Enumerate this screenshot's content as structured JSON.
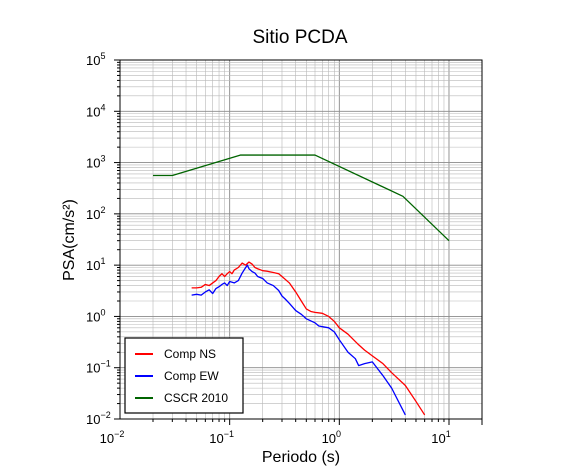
{
  "chart_data": {
    "type": "line",
    "title": "Sitio PCDA",
    "xlabel": "Periodo (s)",
    "ylabel": "PSA(cm/s²)",
    "xscale": "log",
    "yscale": "log",
    "xlim": [
      0.01,
      20
    ],
    "ylim": [
      0.01,
      100000
    ],
    "grid": true,
    "legend_position": "bottom-left",
    "x_ticks": [
      {
        "base": "10",
        "exp": "−2"
      },
      {
        "base": "10",
        "exp": "−1"
      },
      {
        "base": "10",
        "exp": "0"
      },
      {
        "base": "10",
        "exp": "1"
      }
    ],
    "y_ticks": [
      {
        "base": "10",
        "exp": "−2"
      },
      {
        "base": "10",
        "exp": "−1"
      },
      {
        "base": "10",
        "exp": "0"
      },
      {
        "base": "10",
        "exp": "1"
      },
      {
        "base": "10",
        "exp": "2"
      },
      {
        "base": "10",
        "exp": "3"
      },
      {
        "base": "10",
        "exp": "4"
      },
      {
        "base": "10",
        "exp": "5"
      }
    ],
    "series": [
      {
        "name": "Comp NS",
        "color": "#ff0000",
        "points": [
          [
            0.045,
            3.6
          ],
          [
            0.05,
            3.6
          ],
          [
            0.055,
            3.7
          ],
          [
            0.06,
            4.2
          ],
          [
            0.065,
            4.0
          ],
          [
            0.07,
            4.5
          ],
          [
            0.075,
            5.0
          ],
          [
            0.08,
            6.0
          ],
          [
            0.085,
            6.8
          ],
          [
            0.09,
            6.0
          ],
          [
            0.095,
            6.8
          ],
          [
            0.1,
            7.5
          ],
          [
            0.105,
            6.8
          ],
          [
            0.11,
            8.0
          ],
          [
            0.12,
            9.0
          ],
          [
            0.13,
            11.0
          ],
          [
            0.14,
            10.0
          ],
          [
            0.15,
            11.5
          ],
          [
            0.16,
            10.5
          ],
          [
            0.17,
            9.0
          ],
          [
            0.18,
            8.5
          ],
          [
            0.2,
            7.8
          ],
          [
            0.22,
            7.6
          ],
          [
            0.25,
            7.2
          ],
          [
            0.28,
            6.8
          ],
          [
            0.3,
            6.0
          ],
          [
            0.35,
            4.5
          ],
          [
            0.4,
            3.0
          ],
          [
            0.45,
            2.0
          ],
          [
            0.5,
            1.4
          ],
          [
            0.55,
            1.25
          ],
          [
            0.6,
            1.2
          ],
          [
            0.7,
            1.15
          ],
          [
            0.8,
            1.0
          ],
          [
            0.9,
            0.8
          ],
          [
            1.0,
            0.6
          ],
          [
            1.2,
            0.45
          ],
          [
            1.5,
            0.28
          ],
          [
            1.7,
            0.22
          ],
          [
            2.0,
            0.17
          ],
          [
            2.5,
            0.12
          ],
          [
            3.0,
            0.08
          ],
          [
            4.0,
            0.045
          ],
          [
            5.0,
            0.022
          ],
          [
            6.0,
            0.012
          ]
        ]
      },
      {
        "name": "Comp EW",
        "color": "#0000ff",
        "points": [
          [
            0.045,
            2.6
          ],
          [
            0.05,
            2.7
          ],
          [
            0.055,
            2.6
          ],
          [
            0.06,
            3.0
          ],
          [
            0.065,
            3.3
          ],
          [
            0.07,
            2.8
          ],
          [
            0.075,
            3.5
          ],
          [
            0.08,
            3.8
          ],
          [
            0.085,
            4.2
          ],
          [
            0.09,
            4.5
          ],
          [
            0.095,
            4.0
          ],
          [
            0.1,
            4.8
          ],
          [
            0.11,
            4.5
          ],
          [
            0.12,
            5.0
          ],
          [
            0.13,
            7.0
          ],
          [
            0.14,
            9.0
          ],
          [
            0.145,
            10.0
          ],
          [
            0.15,
            8.5
          ],
          [
            0.16,
            7.5
          ],
          [
            0.17,
            7.0
          ],
          [
            0.18,
            6.0
          ],
          [
            0.2,
            5.5
          ],
          [
            0.22,
            4.5
          ],
          [
            0.25,
            4.0
          ],
          [
            0.28,
            3.2
          ],
          [
            0.3,
            2.5
          ],
          [
            0.32,
            2.2
          ],
          [
            0.35,
            1.8
          ],
          [
            0.4,
            1.3
          ],
          [
            0.45,
            1.1
          ],
          [
            0.5,
            0.9
          ],
          [
            0.6,
            0.75
          ],
          [
            0.65,
            0.65
          ],
          [
            0.8,
            0.6
          ],
          [
            0.9,
            0.5
          ],
          [
            1.0,
            0.35
          ],
          [
            1.2,
            0.2
          ],
          [
            1.4,
            0.15
          ],
          [
            1.5,
            0.11
          ],
          [
            1.7,
            0.12
          ],
          [
            2.0,
            0.13
          ],
          [
            2.5,
            0.07
          ],
          [
            3.0,
            0.04
          ],
          [
            4.0,
            0.012
          ]
        ]
      },
      {
        "name": "CSCR 2010",
        "color": "#006400",
        "points": [
          [
            0.02,
            560
          ],
          [
            0.03,
            560
          ],
          [
            0.125,
            1400
          ],
          [
            0.6,
            1400
          ],
          [
            3.8,
            220
          ],
          [
            10.0,
            30
          ]
        ]
      }
    ]
  }
}
